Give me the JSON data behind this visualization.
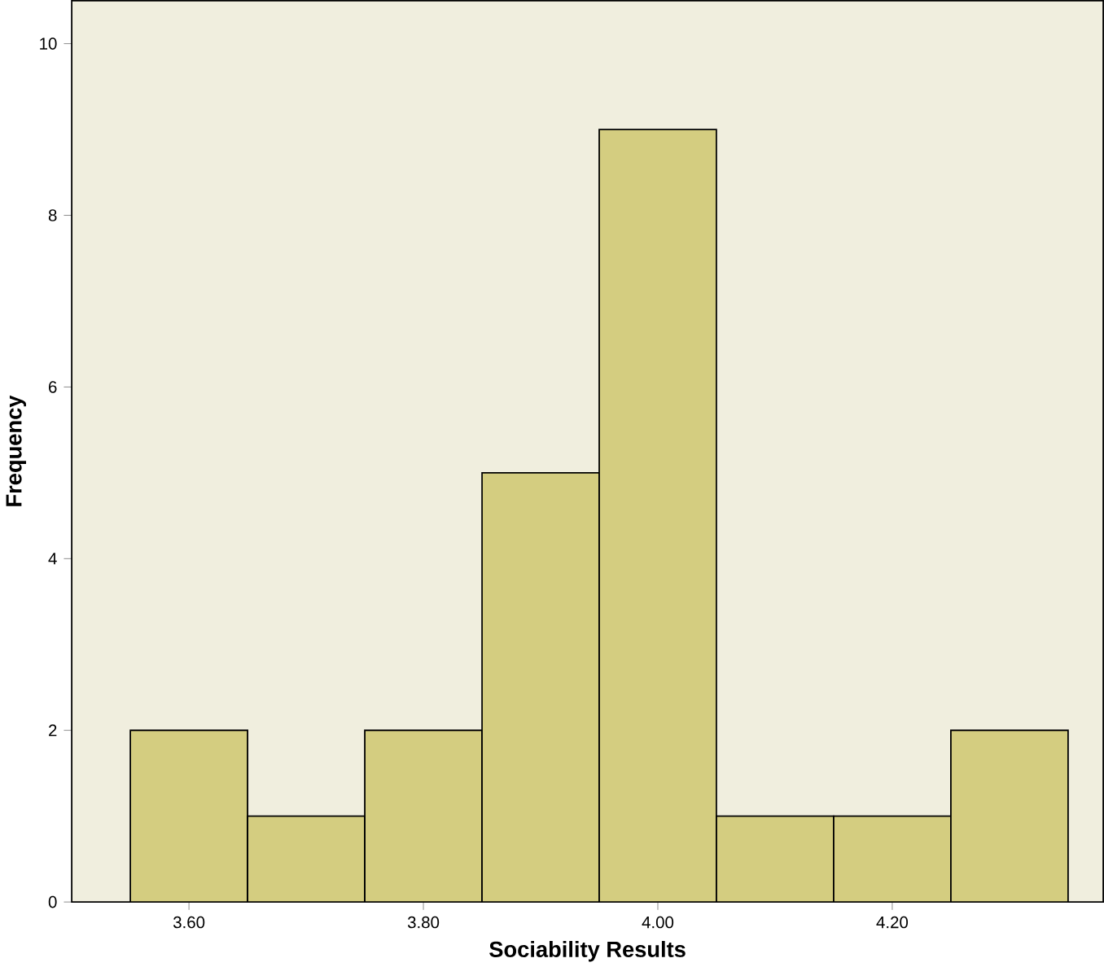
{
  "chart_data": {
    "type": "histogram",
    "xlabel": "Sociability Results",
    "ylabel": "Frequency",
    "bins": [
      3.55,
      3.65,
      3.75,
      3.85,
      3.95,
      4.05,
      4.15,
      4.25,
      4.35
    ],
    "values": [
      2,
      1,
      2,
      5,
      9,
      1,
      1,
      2
    ],
    "color": "#d4cd80",
    "xlim": [
      3.5,
      4.38
    ],
    "ylim": [
      0,
      10.5
    ],
    "xticks": [
      {
        "value": 3.6,
        "label": "3.60"
      },
      {
        "value": 3.8,
        "label": "3.80"
      },
      {
        "value": 4.0,
        "label": "4.00"
      },
      {
        "value": 4.2,
        "label": "4.20"
      }
    ],
    "yticks": [
      0,
      2,
      4,
      6,
      8,
      10
    ],
    "grid": false
  }
}
